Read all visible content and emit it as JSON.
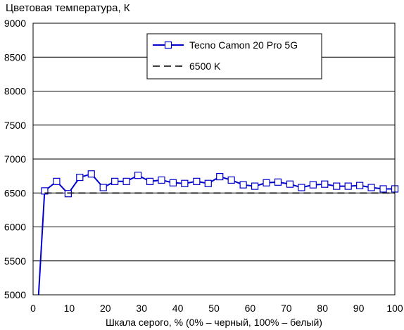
{
  "chart_data": {
    "type": "line",
    "title": "Цветовая температура, К",
    "xlabel": "Шкала серого, % (0% – черный, 100% – белый)",
    "ylabel": "",
    "xlim": [
      0,
      100
    ],
    "ylim": [
      5000,
      9000
    ],
    "xticks": [
      "0",
      "10",
      "20",
      "30",
      "40",
      "50",
      "60",
      "70",
      "80",
      "90",
      "100"
    ],
    "yticks": [
      "5000",
      "5500",
      "6000",
      "6500",
      "7000",
      "7500",
      "8000",
      "8500",
      "9000"
    ],
    "grid": "horizontal",
    "legend_position": "top-right",
    "series": [
      {
        "name": "Tecno Camon 20 Pro 5G",
        "color": "#0000cc",
        "marker": "square",
        "x": [
          1.5,
          3.2,
          6.5,
          9.7,
          12.9,
          16.1,
          19.4,
          22.6,
          25.8,
          29.0,
          32.3,
          35.5,
          38.7,
          41.9,
          45.2,
          48.4,
          51.6,
          54.8,
          58.1,
          61.3,
          64.5,
          67.7,
          71.0,
          74.2,
          77.4,
          80.6,
          83.9,
          87.1,
          90.3,
          93.5,
          96.8,
          100
        ],
        "y": [
          4980,
          6530,
          6670,
          6490,
          6730,
          6780,
          6580,
          6670,
          6670,
          6760,
          6670,
          6690,
          6650,
          6640,
          6670,
          6640,
          6740,
          6690,
          6620,
          6600,
          6650,
          6660,
          6630,
          6580,
          6620,
          6630,
          6600,
          6600,
          6610,
          6580,
          6560,
          6560
        ]
      },
      {
        "name": "6500 K",
        "color": "#000000",
        "style": "dashed",
        "x": [
          3.2,
          100
        ],
        "y": [
          6500,
          6500
        ]
      }
    ]
  }
}
